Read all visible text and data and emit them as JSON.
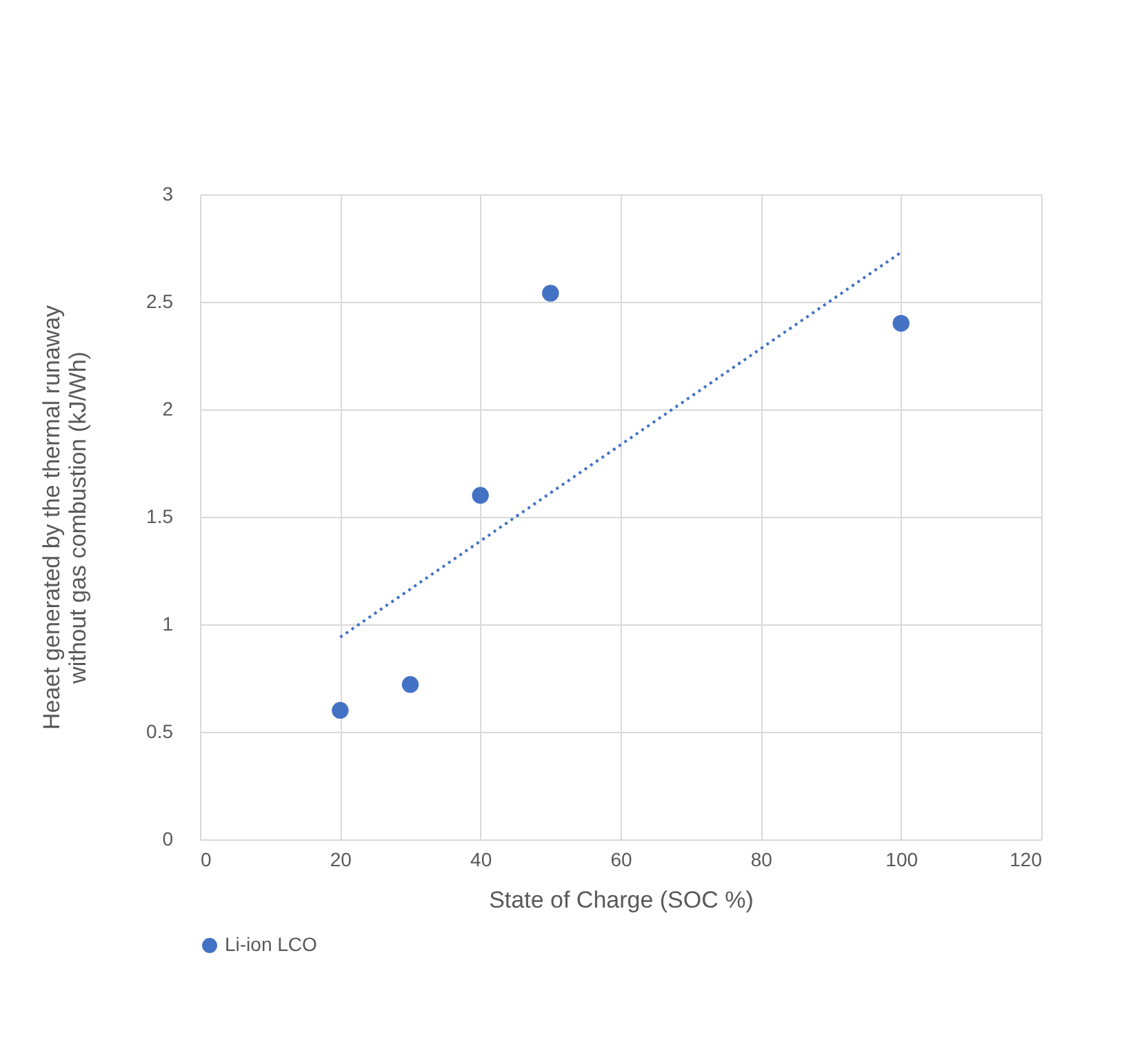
{
  "chart_data": {
    "type": "scatter",
    "xlabel": "State of Charge (SOC %)",
    "ylabel": "Heaet generated by the thermal runaway without gas combustion (kJ/Wh)",
    "x": [
      20,
      30,
      40,
      50,
      100
    ],
    "series": [
      {
        "name": "Li-ion LCO",
        "color": "#4472c4",
        "values": [
          0.6,
          0.72,
          1.6,
          2.54,
          2.4
        ],
        "marker": "circle"
      },
      {
        "type": "line",
        "color": "#4472c4",
        "x": [
          20,
          100
        ],
        "values": [
          0.94,
          2.73
        ],
        "line_style": "dotted",
        "marker": "none"
      }
    ],
    "xlim": [
      0,
      120
    ],
    "xticks": [
      0,
      20,
      40,
      60,
      80,
      100,
      120
    ],
    "ylim": [
      0,
      3
    ],
    "yticks": [
      0,
      0.5,
      1,
      1.5,
      2,
      2.5,
      3
    ],
    "grid": true,
    "legend": "bottom"
  }
}
